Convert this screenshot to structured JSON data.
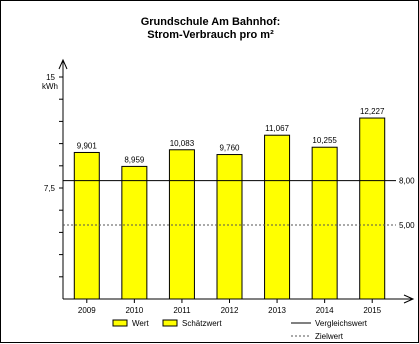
{
  "chart_data": {
    "type": "bar",
    "title_line1": "Grundschule Am Bahnhof:",
    "title_line2": "Strom-Verbrauch pro m²",
    "categories": [
      "2009",
      "2010",
      "2011",
      "2012",
      "2013",
      "2014",
      "2015"
    ],
    "values": [
      9.901,
      8.959,
      10.083,
      9.76,
      11.067,
      10.255,
      12.227
    ],
    "value_labels": [
      "9,901",
      "8,959",
      "10,083",
      "9,760",
      "11,067",
      "10,255",
      "12,227"
    ],
    "ylabel": "kWh",
    "ylim": [
      0,
      15
    ],
    "y_tick_labels": [
      {
        "value": 15,
        "label": "15"
      },
      {
        "value": 7.5,
        "label": "7,5"
      }
    ],
    "reference_lines": [
      {
        "name": "Vergleichswert",
        "value": 8.0,
        "label": "8,00",
        "style": "solid"
      },
      {
        "name": "Zielwert",
        "value": 5.0,
        "label": "5,00",
        "style": "dashed"
      }
    ],
    "legend": {
      "placement": "bottom",
      "items": [
        {
          "label": "Wert",
          "kind": "swatch"
        },
        {
          "label": "Schätzwert",
          "kind": "swatch"
        },
        {
          "label": "Vergleichswert",
          "kind": "solid-line"
        },
        {
          "label": "Zielwert",
          "kind": "dashed-line"
        }
      ]
    },
    "bar_color": "#ffff00",
    "bar_border_color": "#000000",
    "grid": false
  }
}
